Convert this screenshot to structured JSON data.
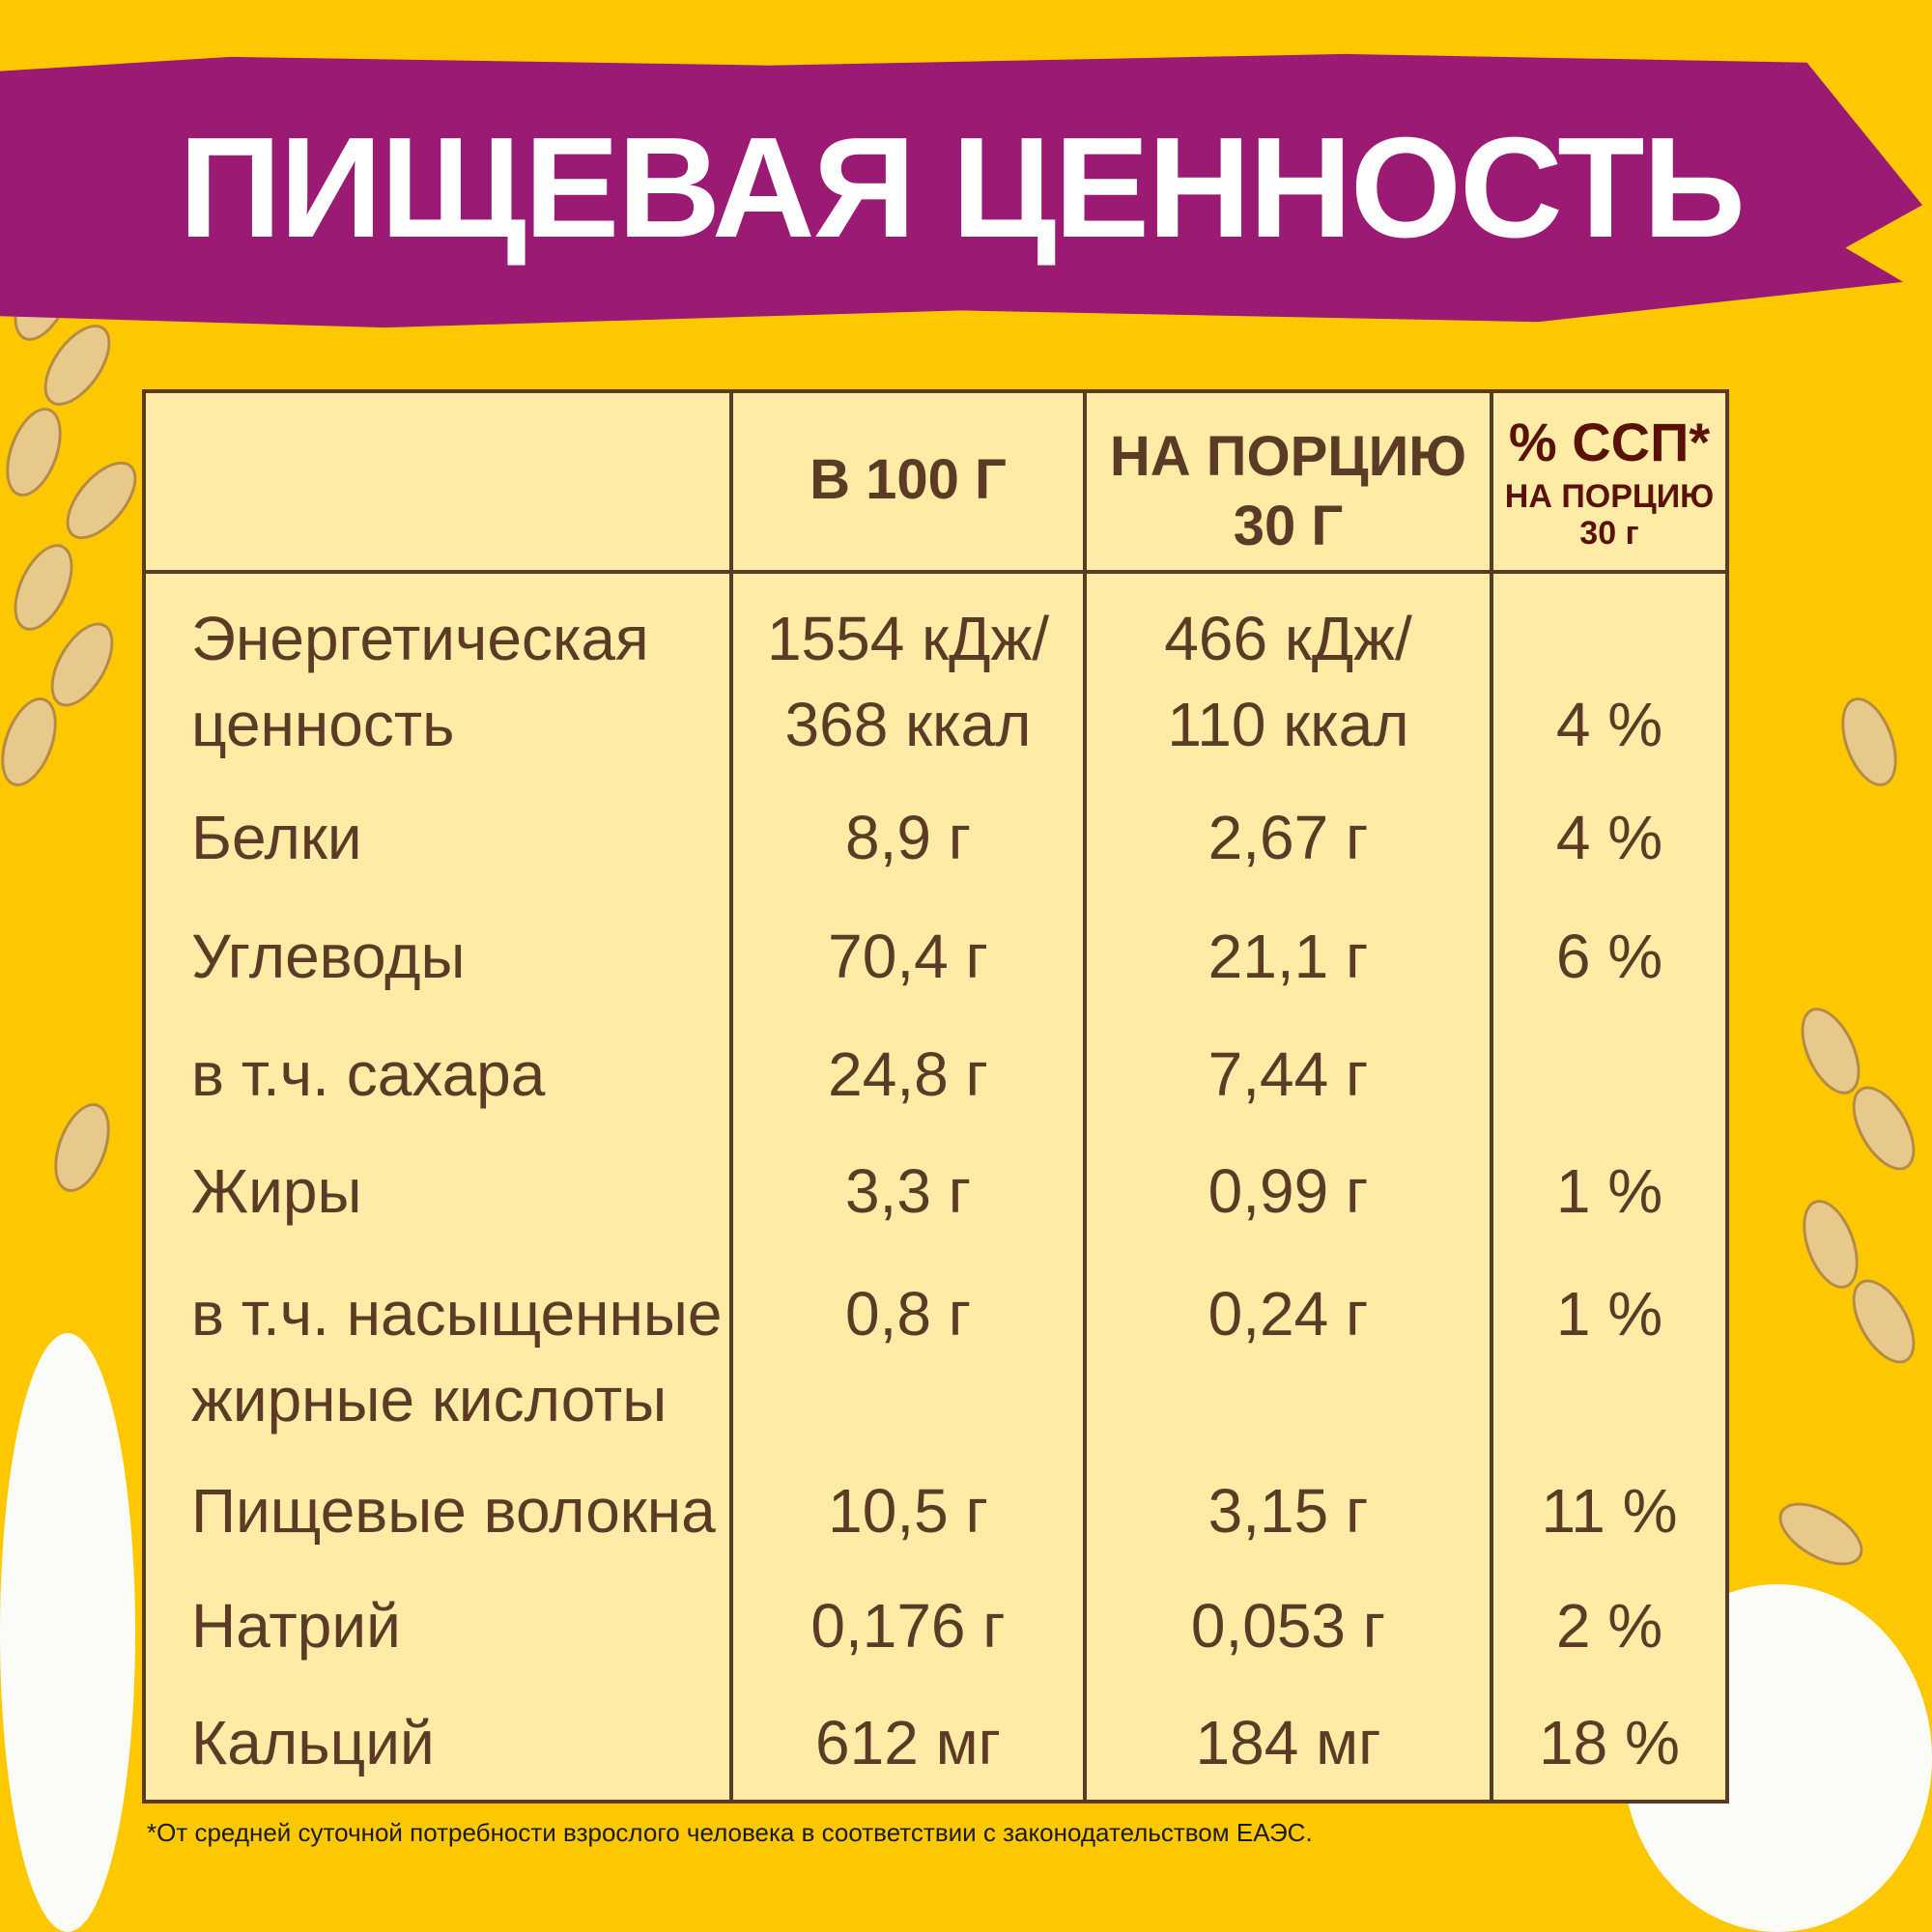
{
  "title": "ПИЩЕВАЯ ЦЕННОСТЬ",
  "colors": {
    "background": "#fdc800",
    "band": "#9b1b74",
    "table_fill": "#feeba6",
    "text": "#5b3a26"
  },
  "header": {
    "per100": "В 100 Г",
    "perServing": "НА ПОРЦИЮ\n30 Г",
    "pct_title": "% ССП*",
    "pct_sub": "НА ПОРЦИЮ\n30 г"
  },
  "rows": [
    {
      "label": "Энергетическая\nценность",
      "per100": "1554 кДж/\n368 ккал",
      "perServing": "466 кДж/\n110 ккал",
      "pct": "\n4 %"
    },
    {
      "label": "Белки",
      "per100": "8,9 г",
      "perServing": "2,67 г",
      "pct": "4 %"
    },
    {
      "label": "Углеводы",
      "per100": "70,4 г",
      "perServing": "21,1 г",
      "pct": "6 %"
    },
    {
      "label": "в т.ч. сахара",
      "per100": "24,8 г",
      "perServing": "7,44 г",
      "pct": ""
    },
    {
      "label": "Жиры",
      "per100": "3,3 г",
      "perServing": "0,99 г",
      "pct": "1 %"
    },
    {
      "label": "в т.ч. насыщенные\nжирные кислоты",
      "per100": "0,8 г",
      "perServing": "0,24 г",
      "pct": "1 %"
    },
    {
      "label": "Пищевые волокна",
      "per100": "10,5 г",
      "perServing": "3,15 г",
      "pct": "11 %"
    },
    {
      "label": "Натрий",
      "per100": "0,176 г",
      "perServing": "0,053 г",
      "pct": "2 %"
    },
    {
      "label": "Кальций",
      "per100": "612 мг",
      "perServing": "184 мг",
      "pct": "18 %"
    }
  ],
  "footnote": "*От средней суточной потребности взрослого человека в соответствии с законодательством ЕАЭС."
}
